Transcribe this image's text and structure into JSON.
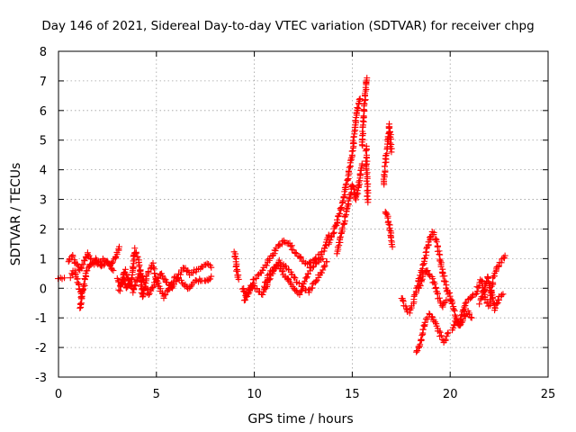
{
  "chart_data": {
    "type": "scatter",
    "title": "Day 146 of 2021, Sidereal Day-to-day VTEC variation (SDTVAR) for receiver chpg",
    "xlabel": "GPS time / hours",
    "ylabel": "SDTVAR / TECUs",
    "xlim": [
      0,
      25
    ],
    "ylim": [
      -3,
      8
    ],
    "xticks": [
      0,
      5,
      10,
      15,
      20,
      25
    ],
    "yticks": [
      -3,
      -2,
      -1,
      0,
      1,
      2,
      3,
      4,
      5,
      6,
      7,
      8
    ],
    "grid": true,
    "marker": "+",
    "color": "#ff0000",
    "series": [
      {
        "name": "SDTVAR",
        "segments": [
          {
            "id": "a",
            "x": [
              0.0,
              0.3
            ],
            "y": [
              0.35,
              0.35
            ]
          },
          {
            "id": "b",
            "x": [
              0.5,
              0.7,
              0.9,
              1.1,
              1.3,
              1.5,
              1.7,
              2.0,
              2.3,
              2.6,
              2.9,
              3.1
            ],
            "y": [
              0.9,
              1.1,
              0.8,
              0.6,
              0.9,
              1.2,
              0.9,
              0.8,
              1.0,
              0.8,
              1.0,
              1.4
            ]
          },
          {
            "id": "c",
            "x": [
              0.6,
              0.8,
              1.0,
              1.2,
              1.4,
              1.6,
              1.9,
              2.2,
              2.5,
              2.8
            ],
            "y": [
              0.4,
              0.6,
              0.2,
              -0.3,
              0.5,
              0.8,
              1.0,
              0.7,
              0.9,
              0.6
            ]
          },
          {
            "id": "d",
            "x": [
              1.1,
              1.15,
              1.2
            ],
            "y": [
              -0.7,
              -0.4,
              -0.1
            ]
          },
          {
            "id": "e",
            "x": [
              3.0,
              3.2,
              3.4,
              3.6,
              3.8,
              4.0,
              4.2,
              4.4,
              4.6,
              4.8,
              5.0,
              5.2,
              5.5,
              5.8,
              6.1,
              6.4,
              6.7,
              7.0,
              7.3,
              7.6,
              7.8
            ],
            "y": [
              0.3,
              0.1,
              0.6,
              0.2,
              -0.1,
              0.3,
              0.6,
              0.1,
              -0.2,
              0.0,
              0.3,
              0.5,
              0.2,
              0.0,
              0.4,
              0.7,
              0.5,
              0.6,
              0.7,
              0.8,
              0.7
            ]
          },
          {
            "id": "f",
            "x": [
              3.1,
              3.3,
              3.5,
              3.7,
              3.9,
              4.1,
              4.3,
              4.5,
              4.8,
              5.1,
              5.4,
              5.7,
              6.0,
              6.3,
              6.6,
              6.9,
              7.2,
              7.5,
              7.8
            ],
            "y": [
              -0.1,
              0.4,
              0.0,
              0.2,
              1.3,
              0.9,
              -0.3,
              0.4,
              0.8,
              0.1,
              -0.3,
              0.1,
              0.4,
              0.2,
              0.0,
              0.2,
              0.3,
              0.2,
              0.4
            ]
          },
          {
            "id": "g",
            "x": [
              9.0,
              9.1,
              9.2
            ],
            "y": [
              1.2,
              0.6,
              0.3
            ]
          },
          {
            "id": "h",
            "x": [
              9.4,
              9.6,
              9.8,
              10.0,
              10.3,
              10.6,
              10.9,
              11.2,
              11.5,
              11.8,
              12.1,
              12.4,
              12.7,
              13.0,
              13.3,
              13.6,
              13.8
            ],
            "y": [
              0.0,
              -0.3,
              -0.1,
              0.3,
              0.5,
              0.8,
              1.1,
              1.4,
              1.6,
              1.5,
              1.2,
              1.0,
              0.8,
              0.9,
              1.1,
              1.3,
              1.8
            ]
          },
          {
            "id": "i",
            "x": [
              9.5,
              9.8,
              10.1,
              10.4,
              10.7,
              11.0,
              11.3,
              11.6,
              11.9,
              12.2,
              12.5,
              12.8,
              13.1,
              13.4,
              13.7
            ],
            "y": [
              -0.4,
              0.1,
              0.0,
              -0.2,
              0.2,
              0.6,
              0.9,
              0.7,
              0.5,
              0.2,
              0.0,
              -0.1,
              0.2,
              0.5,
              0.9
            ]
          },
          {
            "id": "j",
            "x": [
              10.5,
              10.8,
              11.1,
              11.4,
              11.7,
              12.0,
              12.3,
              12.6,
              12.9,
              13.2,
              13.5
            ],
            "y": [
              0.1,
              0.5,
              0.8,
              0.6,
              0.3,
              0.0,
              -0.2,
              0.3,
              0.7,
              0.9,
              1.0
            ]
          },
          {
            "id": "k",
            "x": [
              13.8,
              14.0,
              14.2,
              14.4,
              14.6,
              14.8,
              15.0,
              15.1,
              15.2,
              15.3,
              15.4
            ],
            "y": [
              1.5,
              1.8,
              2.2,
              2.6,
              3.2,
              3.8,
              4.6,
              5.2,
              5.8,
              6.2,
              6.4
            ]
          },
          {
            "id": "l",
            "x": [
              14.2,
              14.4,
              14.6,
              14.8,
              15.0,
              15.2,
              15.4,
              15.5
            ],
            "y": [
              1.2,
              1.7,
              2.3,
              2.9,
              3.5,
              3.0,
              3.8,
              4.2
            ]
          },
          {
            "id": "m",
            "x": [
              15.5,
              15.6,
              15.7,
              15.75
            ],
            "y": [
              4.8,
              6.0,
              6.9,
              7.1
            ]
          },
          {
            "id": "n",
            "x": [
              15.7,
              15.8
            ],
            "y": [
              4.8,
              2.9
            ]
          },
          {
            "id": "o",
            "x": [
              16.6,
              16.7,
              16.8,
              16.9,
              17.0
            ],
            "y": [
              3.5,
              4.2,
              4.9,
              5.5,
              4.6
            ]
          },
          {
            "id": "p",
            "x": [
              16.7,
              16.8,
              16.9,
              17.0,
              17.05
            ],
            "y": [
              2.6,
              2.4,
              2.1,
              1.7,
              1.4
            ]
          },
          {
            "id": "q",
            "x": [
              17.5,
              17.7,
              17.9,
              18.1,
              18.3,
              18.5,
              18.7,
              18.9,
              19.1,
              19.3,
              19.5,
              19.7,
              19.9
            ],
            "y": [
              -0.3,
              -0.6,
              -0.8,
              -0.5,
              0.0,
              0.5,
              1.0,
              1.5,
              1.9,
              1.6,
              0.9,
              0.3,
              -0.2
            ]
          },
          {
            "id": "r",
            "x": [
              18.3,
              18.5,
              18.7,
              18.9,
              19.1,
              19.3,
              19.5,
              19.7,
              19.9
            ],
            "y": [
              -2.2,
              -1.8,
              -1.2,
              -0.9,
              -1.0,
              -1.3,
              -1.6,
              -1.8,
              -1.5
            ]
          },
          {
            "id": "s",
            "x": [
              18.4,
              18.6,
              18.8,
              19.0,
              19.2,
              19.4,
              19.6,
              19.8
            ],
            "y": [
              0.0,
              0.4,
              0.6,
              0.4,
              0.1,
              -0.3,
              -0.6,
              -0.4
            ]
          },
          {
            "id": "t",
            "x": [
              20.0,
              20.2,
              20.4,
              20.6,
              20.8,
              21.0,
              21.2,
              21.4
            ],
            "y": [
              -0.2,
              -0.8,
              -1.2,
              -0.9,
              -0.5,
              -0.3,
              -0.2,
              -0.1
            ]
          },
          {
            "id": "u",
            "x": [
              20.1,
              20.3,
              20.5,
              20.7,
              20.9,
              21.1
            ],
            "y": [
              -1.4,
              -1.1,
              -1.3,
              -1.0,
              -0.8,
              -1.0
            ]
          },
          {
            "id": "v",
            "x": [
              21.4,
              21.6,
              21.8,
              22.0,
              22.2,
              22.4,
              22.6,
              22.8
            ],
            "y": [
              0.0,
              0.3,
              -0.4,
              -0.6,
              0.3,
              0.7,
              0.9,
              1.1
            ]
          },
          {
            "id": "w",
            "x": [
              21.5,
              21.7,
              21.9,
              22.1,
              22.3,
              22.5,
              22.7
            ],
            "y": [
              -0.5,
              -0.2,
              0.4,
              -0.2,
              -0.7,
              -0.3,
              -0.2
            ]
          }
        ]
      }
    ]
  }
}
